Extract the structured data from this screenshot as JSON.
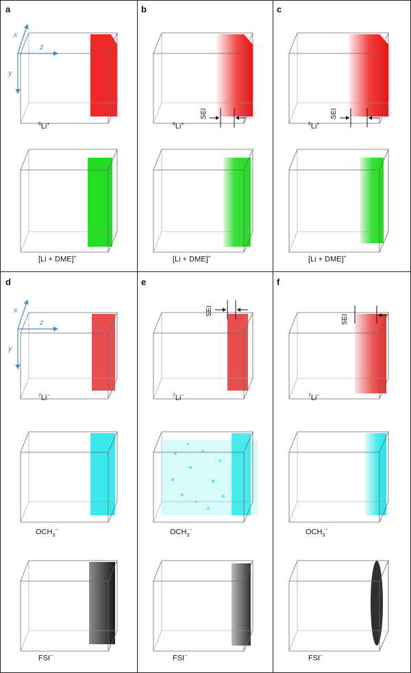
{
  "panels": {
    "a": {
      "letter": "a"
    },
    "b": {
      "letter": "b"
    },
    "c": {
      "letter": "c"
    },
    "d": {
      "letter": "d"
    },
    "e": {
      "letter": "e"
    },
    "f": {
      "letter": "f"
    }
  },
  "axes": {
    "x": "x",
    "y": "y",
    "z": "z"
  },
  "sei_label": "SEI",
  "species": {
    "li6": {
      "sup": "6",
      "base": "Li",
      "charge": "+"
    },
    "li_dme": {
      "base": "[Li + DME]",
      "charge": "+"
    },
    "li7": {
      "sup": "7",
      "base": "Li",
      "charge": "−"
    },
    "och3": {
      "base": "OCH",
      "sub": "3",
      "charge": "−"
    },
    "fsi": {
      "base": "FSI",
      "charge": "−"
    }
  },
  "colors": {
    "li6": "#f01010",
    "li_dme": "#22dd22",
    "li7": "#e63030",
    "och3": "#22e6ea",
    "fsi": "#1a1a1a",
    "axis": "#4a8ac2"
  },
  "icons": {
    "axis_arrow": "arrow-icon",
    "sei_marker": "arrow-icon"
  }
}
